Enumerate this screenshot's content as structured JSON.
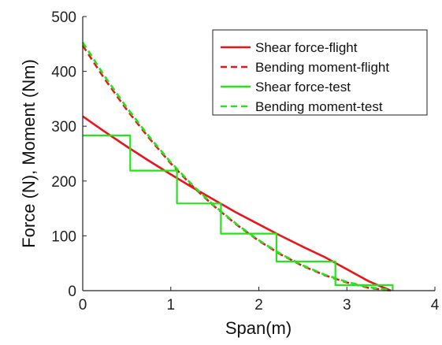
{
  "chart_data": {
    "type": "line",
    "title": "",
    "xlabel": "Span(m)",
    "ylabel": "Force (N), Moment (Nm)",
    "xlim": [
      0,
      4
    ],
    "ylim": [
      0,
      500
    ],
    "xticks": [
      "0",
      "1",
      "2",
      "3",
      "4"
    ],
    "yticks": [
      "0",
      "100",
      "200",
      "300",
      "400",
      "500"
    ],
    "grid": false,
    "legend": "top-right",
    "colors": {
      "flight": "#e8161c",
      "test": "#22e51b"
    },
    "series": [
      {
        "name": "Shear force-flight",
        "color": "#e8161c",
        "style": "solid",
        "x": [
          0,
          0.25,
          0.5,
          0.75,
          1.0,
          1.25,
          1.5,
          1.75,
          2.0,
          2.25,
          2.5,
          2.75,
          3.0,
          3.25,
          3.5
        ],
        "y": [
          318,
          290,
          263,
          237,
          212,
          188,
          165,
          142,
          121,
          100,
          80,
          61,
          39,
          17,
          0
        ]
      },
      {
        "name": "Bending moment-flight",
        "color": "#e8161c",
        "style": "dashed",
        "x": [
          0,
          0.25,
          0.5,
          0.75,
          1.0,
          1.25,
          1.5,
          1.75,
          2.0,
          2.25,
          2.5,
          2.75,
          3.0,
          3.25,
          3.5
        ],
        "y": [
          447,
          386,
          330,
          279,
          232,
          190,
          153,
          120,
          91,
          66,
          45,
          28,
          15,
          5,
          0
        ]
      },
      {
        "name": "Shear force-test",
        "color": "#22e51b",
        "style": "step",
        "x": [
          0,
          0.54,
          0.54,
          1.07,
          1.07,
          1.57,
          1.57,
          2.2,
          2.2,
          2.87,
          2.87,
          3.52,
          3.52
        ],
        "y": [
          283,
          283,
          219,
          219,
          159,
          159,
          104,
          104,
          53,
          53,
          10,
          10,
          0
        ]
      },
      {
        "name": "Bending moment-test",
        "color": "#22e51b",
        "style": "dashed",
        "x": [
          0,
          0.25,
          0.5,
          0.75,
          1.0,
          1.25,
          1.5,
          1.75,
          2.0,
          2.25,
          2.5,
          2.75,
          3.0,
          3.25,
          3.5
        ],
        "y": [
          453,
          391,
          334,
          282,
          234,
          192,
          154,
          121,
          92,
          67,
          46,
          29,
          16,
          6,
          1
        ]
      }
    ]
  }
}
